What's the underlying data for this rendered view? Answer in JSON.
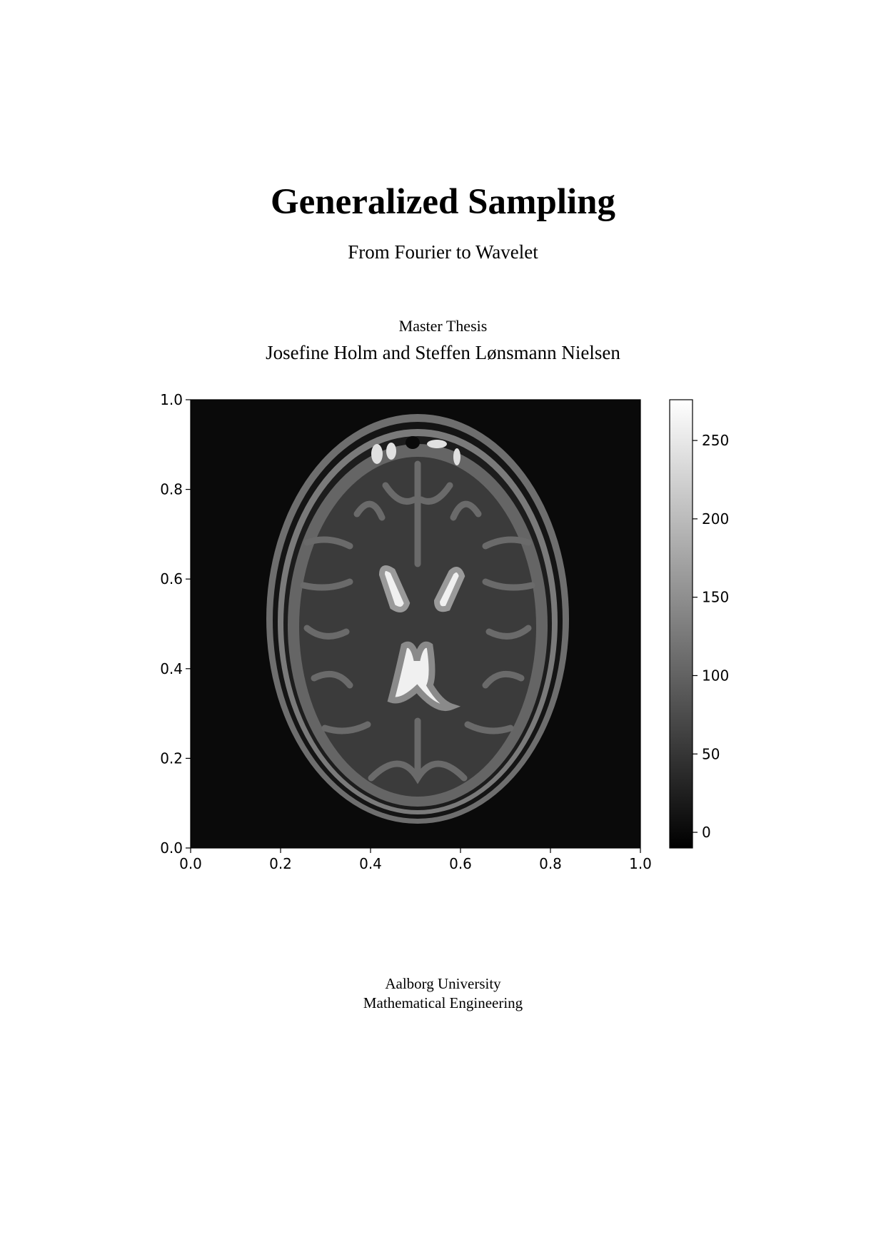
{
  "title": "Generalized Sampling",
  "subtitle": "From Fourier to Wavelet",
  "document_type": "Master Thesis",
  "authors": "Josefine Holm and Steffen Lønsmann Nielsen",
  "university": "Aalborg University",
  "department": "Mathematical Engineering",
  "figure": {
    "type": "image",
    "colormap": "gray",
    "x_ticks": [
      "0.0",
      "0.2",
      "0.4",
      "0.6",
      "0.8",
      "1.0"
    ],
    "y_ticks": [
      "0.0",
      "0.2",
      "0.4",
      "0.6",
      "0.8",
      "1.0"
    ],
    "xlim": [
      0,
      1
    ],
    "ylim": [
      0,
      1
    ],
    "colorbar": {
      "ticks": [
        "0",
        "50",
        "100",
        "150",
        "200",
        "250"
      ],
      "range": [
        -10,
        276
      ]
    }
  }
}
